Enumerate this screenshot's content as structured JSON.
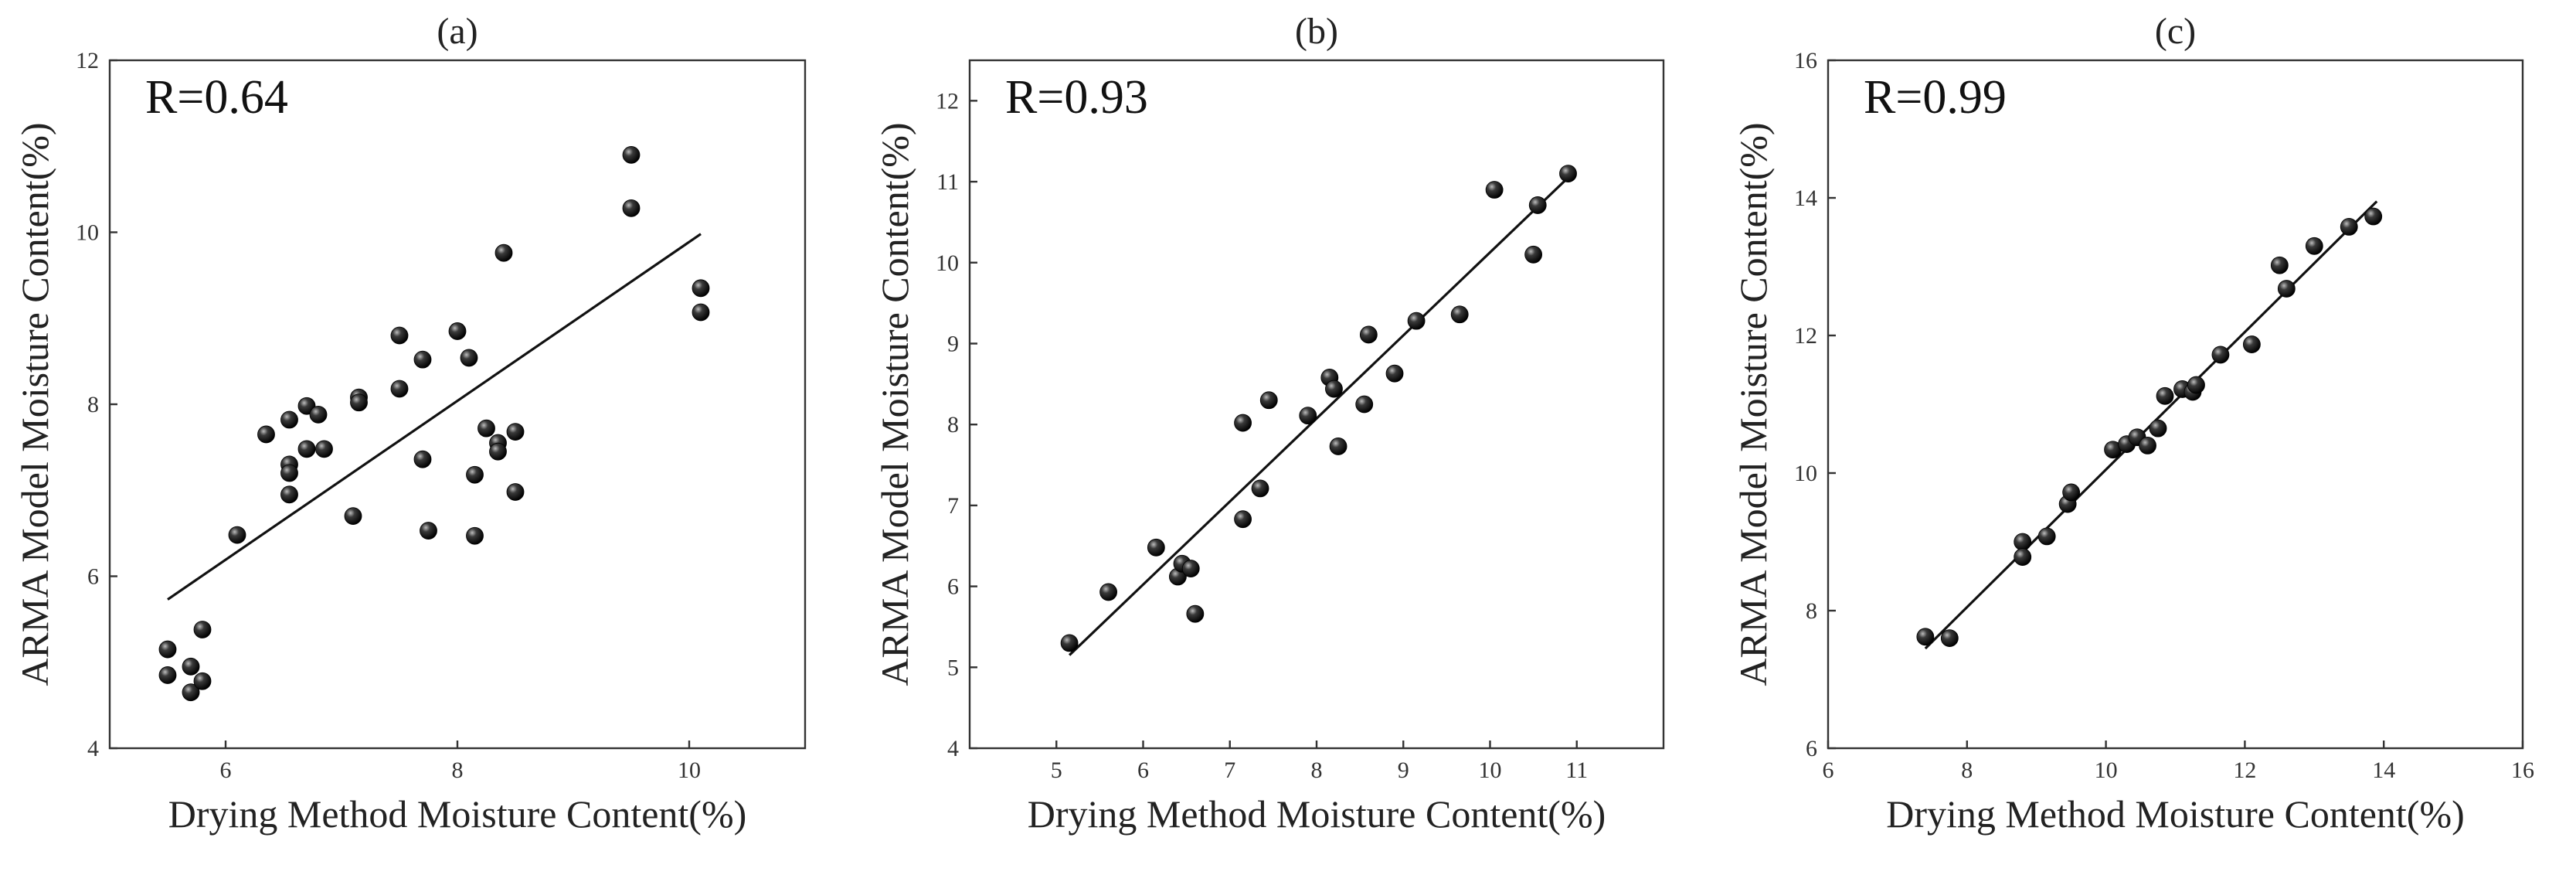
{
  "chart_data": [
    {
      "type": "scatter",
      "title": "(a)",
      "annotation": "R=0.64",
      "xlabel": "Drying Method Moisture Content(%)",
      "ylabel": "ARMA Model Moisture Content(%)",
      "xlim": [
        5,
        11
      ],
      "ylim": [
        4,
        12
      ],
      "xticks": [
        6,
        8,
        10
      ],
      "xticklabels": [
        "6",
        "8",
        "10"
      ],
      "yticks": [
        4,
        6,
        8,
        10,
        12
      ],
      "yticklabels": [
        "4",
        "6",
        "8",
        "10",
        "12"
      ],
      "points": {
        "x": [
          5.5,
          5.5,
          5.7,
          5.7,
          5.8,
          5.8,
          6.1,
          6.35,
          6.55,
          6.55,
          6.55,
          6.55,
          6.7,
          6.7,
          6.8,
          6.85,
          7.1,
          7.15,
          7.15,
          7.5,
          7.5,
          7.7,
          7.7,
          7.75,
          8.0,
          8.1,
          8.15,
          8.15,
          8.25,
          8.35,
          8.35,
          8.4,
          8.5,
          8.5,
          9.5,
          9.5,
          10.1,
          10.1
        ],
        "y": [
          5.15,
          4.85,
          4.95,
          4.65,
          5.38,
          4.78,
          6.48,
          7.65,
          7.82,
          7.3,
          7.2,
          6.95,
          7.98,
          7.48,
          7.88,
          7.48,
          6.7,
          8.08,
          8.02,
          8.8,
          8.18,
          8.52,
          7.36,
          6.53,
          8.85,
          8.54,
          7.18,
          6.47,
          7.72,
          7.55,
          7.45,
          9.76,
          7.68,
          6.98,
          10.9,
          10.28,
          9.35,
          9.07
        ]
      },
      "fit": {
        "x": [
          5.5,
          10.1
        ],
        "y": [
          5.73,
          9.98
        ]
      }
    },
    {
      "type": "scatter",
      "title": "(b)",
      "annotation": "R=0.93",
      "xlabel": "Drying Method Moisture Content(%)",
      "ylabel": "ARMA Model Moisture Content(%)",
      "xlim": [
        4,
        12
      ],
      "ylim": [
        4,
        12.5
      ],
      "xticks": [
        5,
        6,
        7,
        8,
        9,
        10,
        11
      ],
      "xticklabels": [
        "5",
        "6",
        "7",
        "8",
        "9",
        "10",
        "11"
      ],
      "yticks": [
        4,
        5,
        6,
        7,
        8,
        9,
        10,
        11,
        12
      ],
      "yticklabels": [
        "4",
        "5",
        "6",
        "7",
        "8",
        "9",
        "10",
        "11",
        "12"
      ],
      "points": {
        "x": [
          5.15,
          5.6,
          6.15,
          6.4,
          6.45,
          6.55,
          6.6,
          7.15,
          7.15,
          7.35,
          7.45,
          7.9,
          8.15,
          8.2,
          8.25,
          8.55,
          8.6,
          8.9,
          9.15,
          9.65,
          10.05,
          10.5,
          10.55,
          10.9
        ],
        "y": [
          5.3,
          5.93,
          6.48,
          6.12,
          6.28,
          6.22,
          5.66,
          6.83,
          8.02,
          7.21,
          8.3,
          8.11,
          8.58,
          8.44,
          7.73,
          8.25,
          9.11,
          8.63,
          9.28,
          9.36,
          10.9,
          10.1,
          10.71,
          11.1
        ]
      },
      "fit": {
        "x": [
          5.15,
          10.9
        ],
        "y": [
          5.15,
          11.05
        ]
      }
    },
    {
      "type": "scatter",
      "title": "(c)",
      "annotation": "R=0.99",
      "xlabel": "Drying Method Moisture Content(%)",
      "ylabel": "ARMA Model Moisture Content(%)",
      "xlim": [
        6,
        16
      ],
      "ylim": [
        6,
        16
      ],
      "xticks": [
        6,
        8,
        10,
        12,
        14,
        16
      ],
      "xticklabels": [
        "6",
        "8",
        "10",
        "12",
        "14",
        "16"
      ],
      "yticks": [
        6,
        8,
        10,
        12,
        14,
        16
      ],
      "yticklabels": [
        "6",
        "8",
        "10",
        "12",
        "14",
        "16"
      ],
      "points": {
        "x": [
          7.4,
          7.75,
          8.8,
          8.8,
          9.15,
          9.45,
          9.5,
          10.1,
          10.3,
          10.45,
          10.6,
          10.75,
          10.85,
          11.1,
          11.25,
          11.3,
          11.65,
          12.1,
          12.5,
          12.6,
          13.0,
          13.5,
          13.85
        ],
        "y": [
          7.62,
          7.6,
          9.0,
          8.78,
          9.08,
          9.55,
          9.72,
          10.34,
          10.42,
          10.52,
          10.4,
          10.65,
          11.12,
          11.22,
          11.18,
          11.28,
          11.72,
          11.87,
          13.02,
          12.68,
          13.3,
          13.58,
          13.73
        ]
      },
      "fit": {
        "x": [
          7.4,
          13.9
        ],
        "y": [
          7.45,
          13.95
        ]
      }
    }
  ]
}
